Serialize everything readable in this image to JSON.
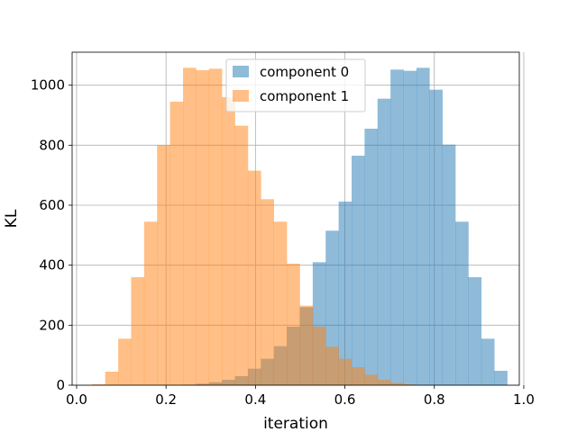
{
  "chart_data": {
    "type": "bar",
    "subtype": "overlapping-histogram",
    "title": "",
    "xlabel": "iteration",
    "ylabel": "KL",
    "xlim": [
      -0.01,
      0.99
    ],
    "ylim": [
      0,
      1110
    ],
    "xticks": [
      0.0,
      0.2,
      0.4,
      0.6,
      0.8,
      1.0
    ],
    "xtick_labels": [
      "0.0",
      "0.2",
      "0.4",
      "0.6",
      "0.8",
      "1.0"
    ],
    "yticks": [
      0,
      200,
      400,
      600,
      800,
      1000
    ],
    "ytick_labels": [
      "0",
      "200",
      "400",
      "600",
      "800",
      "1000"
    ],
    "grid": true,
    "legend_position": "top-center",
    "series": [
      {
        "name": "component 0",
        "color": "#1f77b4",
        "alpha": 0.5,
        "bins": [
          [
            0.238,
            0.267,
            2
          ],
          [
            0.267,
            0.296,
            5
          ],
          [
            0.296,
            0.325,
            10
          ],
          [
            0.325,
            0.354,
            18
          ],
          [
            0.354,
            0.383,
            30
          ],
          [
            0.383,
            0.412,
            55
          ],
          [
            0.412,
            0.441,
            88
          ],
          [
            0.441,
            0.47,
            130
          ],
          [
            0.47,
            0.499,
            195
          ],
          [
            0.499,
            0.528,
            260
          ],
          [
            0.528,
            0.557,
            410
          ],
          [
            0.557,
            0.586,
            515
          ],
          [
            0.586,
            0.615,
            612
          ],
          [
            0.615,
            0.644,
            765
          ],
          [
            0.644,
            0.673,
            855
          ],
          [
            0.673,
            0.702,
            955
          ],
          [
            0.702,
            0.731,
            1052
          ],
          [
            0.731,
            0.76,
            1048
          ],
          [
            0.76,
            0.789,
            1058
          ],
          [
            0.789,
            0.818,
            985
          ],
          [
            0.818,
            0.847,
            802
          ],
          [
            0.847,
            0.876,
            545
          ],
          [
            0.876,
            0.905,
            360
          ],
          [
            0.905,
            0.934,
            155
          ],
          [
            0.934,
            0.963,
            48
          ]
        ]
      },
      {
        "name": "component 1",
        "color": "#ff7f0e",
        "alpha": 0.5,
        "bins": [
          [
            0.035,
            0.064,
            3
          ],
          [
            0.064,
            0.093,
            45
          ],
          [
            0.093,
            0.122,
            155
          ],
          [
            0.122,
            0.151,
            360
          ],
          [
            0.151,
            0.18,
            545
          ],
          [
            0.18,
            0.209,
            800
          ],
          [
            0.209,
            0.238,
            945
          ],
          [
            0.238,
            0.267,
            1058
          ],
          [
            0.267,
            0.296,
            1050
          ],
          [
            0.296,
            0.325,
            1055
          ],
          [
            0.325,
            0.354,
            960
          ],
          [
            0.354,
            0.383,
            865
          ],
          [
            0.383,
            0.412,
            715
          ],
          [
            0.412,
            0.441,
            620
          ],
          [
            0.441,
            0.47,
            545
          ],
          [
            0.47,
            0.499,
            405
          ],
          [
            0.499,
            0.528,
            265
          ],
          [
            0.528,
            0.557,
            195
          ],
          [
            0.557,
            0.586,
            128
          ],
          [
            0.586,
            0.615,
            88
          ],
          [
            0.615,
            0.644,
            60
          ],
          [
            0.644,
            0.673,
            35
          ],
          [
            0.673,
            0.702,
            18
          ],
          [
            0.702,
            0.731,
            8
          ],
          [
            0.731,
            0.76,
            3
          ]
        ]
      }
    ]
  }
}
